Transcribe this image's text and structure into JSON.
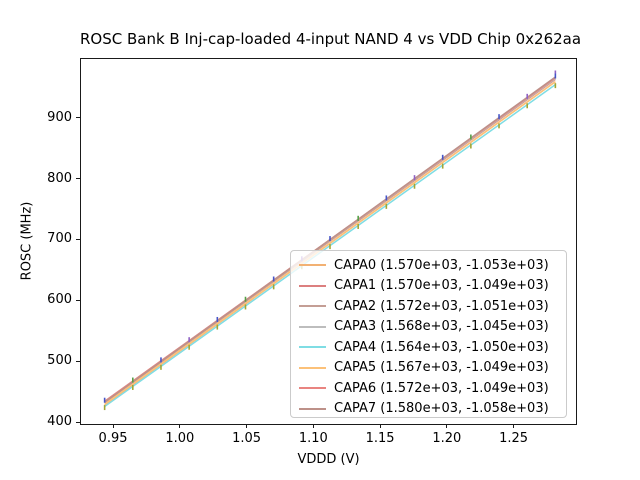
{
  "figure": {
    "background": "#ffffff",
    "frame_color": "#1a1a1a"
  },
  "chart_data": {
    "type": "line",
    "title": "ROSC Bank B Inj-cap-loaded 4-input NAND 4 vs VDD Chip 0x262aa",
    "xlabel": "VDDD (V)",
    "ylabel": "ROSC (MHz)",
    "xlim": [
      0.926,
      1.296
    ],
    "ylim": [
      399,
      996
    ],
    "x_ticks": [
      0.95,
      1.0,
      1.05,
      1.1,
      1.15,
      1.2,
      1.25
    ],
    "x_tick_labels": [
      "0.95",
      "1.00",
      "1.05",
      "1.10",
      "1.15",
      "1.20",
      "1.25"
    ],
    "y_ticks": [
      400,
      500,
      600,
      700,
      800,
      900
    ],
    "y_tick_labels": [
      "400",
      "500",
      "600",
      "700",
      "800",
      "900"
    ],
    "grid": false,
    "legend_position": "lower right",
    "fit_note": "legend shows (slope, intercept) of linear fit: ROSC = slope*VDDD + intercept",
    "x": [
      0.9437,
      0.9648,
      0.9859,
      1.007,
      1.0281,
      1.0492,
      1.0703,
      1.0914,
      1.1125,
      1.1336,
      1.1547,
      1.1758,
      1.1969,
      1.218,
      1.2391,
      1.2602,
      1.2813
    ],
    "series": [
      {
        "name": "CAPA0",
        "label": "CAPA0 (1.570e+03, -1.053e+03)",
        "slope": 1570,
        "intercept": -1053,
        "color": "#f2b173"
      },
      {
        "name": "CAPA1",
        "label": "CAPA1 (1.570e+03, -1.049e+03)",
        "slope": 1570,
        "intercept": -1049,
        "color": "#dc7f7f"
      },
      {
        "name": "CAPA2",
        "label": "CAPA2 (1.572e+03, -1.051e+03)",
        "slope": 1572,
        "intercept": -1051,
        "color": "#c49e95"
      },
      {
        "name": "CAPA3",
        "label": "CAPA3 (1.568e+03, -1.045e+03)",
        "slope": 1568,
        "intercept": -1045,
        "color": "#bdbdbd"
      },
      {
        "name": "CAPA4",
        "label": "CAPA4 (1.564e+03, -1.050e+03)",
        "slope": 1564,
        "intercept": -1050,
        "color": "#7fdde4"
      },
      {
        "name": "CAPA5",
        "label": "CAPA5 (1.567e+03, -1.049e+03)",
        "slope": 1567,
        "intercept": -1049,
        "color": "#fcc179"
      },
      {
        "name": "CAPA6",
        "label": "CAPA6 (1.572e+03, -1.049e+03)",
        "slope": 1572,
        "intercept": -1049,
        "color": "#e98480"
      },
      {
        "name": "CAPA7",
        "label": "CAPA7 (1.580e+03, -1.058e+03)",
        "slope": 1580,
        "intercept": -1058,
        "color": "#bd9189"
      }
    ],
    "errorbar": {
      "top_cap_colors": [
        "#4656c8",
        "#56a048",
        "#4656c8",
        "#8f62c4"
      ],
      "bottom_cap_color": "#a2a636",
      "last_point_extra_cap": "#8f62c4"
    }
  }
}
